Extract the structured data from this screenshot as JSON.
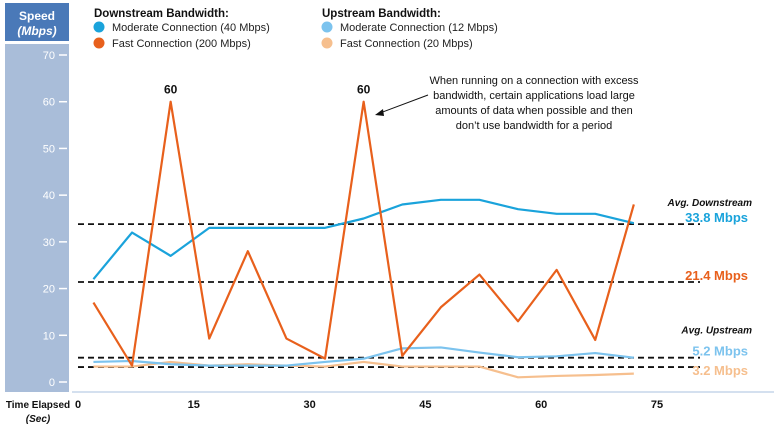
{
  "chart_data": {
    "type": "line",
    "ylabel": "Speed",
    "ylabel_unit": "(Mbps)",
    "xlabel": "Time Elapsed",
    "xlabel_unit": "(Sec)",
    "ylim": [
      0,
      70
    ],
    "xlim": [
      0,
      75
    ],
    "yticks": [
      0,
      10,
      20,
      30,
      40,
      50,
      60,
      70
    ],
    "xticks": [
      0,
      15,
      30,
      45,
      60,
      75
    ],
    "legend": {
      "downstream_title": "Downstream Bandwidth:",
      "upstream_title": "Upstream Bandwidth:"
    },
    "x": [
      2,
      7,
      12,
      17,
      22,
      27,
      32,
      37,
      42,
      47,
      52,
      57,
      62,
      67,
      72
    ],
    "series": [
      {
        "name": "Moderate Connection (40 Mbps)",
        "group": "downstream",
        "color": "#1aa3db",
        "values": [
          22,
          32,
          27,
          33,
          33,
          33,
          33,
          35,
          38,
          39,
          39,
          37,
          36,
          36,
          34
        ]
      },
      {
        "name": "Fast Connection (200 Mbps)",
        "group": "downstream",
        "color": "#e8601c",
        "values": [
          17,
          3.5,
          60,
          9.3,
          28,
          9.3,
          5,
          60,
          5.6,
          16,
          23,
          13,
          24,
          9,
          38
        ]
      },
      {
        "name": "Moderate Connection (12 Mbps)",
        "group": "upstream",
        "color": "#7cc3ee",
        "values": [
          4.3,
          4.5,
          3.8,
          3.5,
          3.5,
          3.5,
          4.3,
          5,
          7.2,
          7.4,
          6.3,
          5.3,
          5.5,
          6.2,
          5.2
        ]
      },
      {
        "name": "Fast Connection (20 Mbps)",
        "group": "upstream",
        "color": "#f6bf8e",
        "values": [
          3.3,
          3.3,
          4.3,
          3.5,
          3.8,
          3.5,
          3.3,
          4.3,
          3.3,
          3.3,
          3.3,
          1,
          1.3,
          1.5,
          1.8
        ]
      }
    ],
    "peak_labels": [
      {
        "x": 12,
        "y": 60,
        "text": "60"
      },
      {
        "x": 37,
        "y": 60,
        "text": "60"
      }
    ],
    "averages": [
      {
        "value": 33.8,
        "text": "33.8 Mbps",
        "color": "#1aa3db",
        "heading": "Avg. Downstream"
      },
      {
        "value": 21.4,
        "text": "21.4 Mbps",
        "color": "#e8601c",
        "heading": ""
      },
      {
        "value": 5.2,
        "text": "5.2 Mbps",
        "color": "#7cc3ee",
        "heading": "Avg. Upstream"
      },
      {
        "value": 3.2,
        "text": "3.2 Mbps",
        "color": "#f6bf8e",
        "heading": ""
      }
    ],
    "annotation": [
      "When running on a connection with excess",
      "bandwidth, certain applications load large",
      "amounts of data when possible and then",
      "don’t use bandwidth for a period"
    ]
  }
}
